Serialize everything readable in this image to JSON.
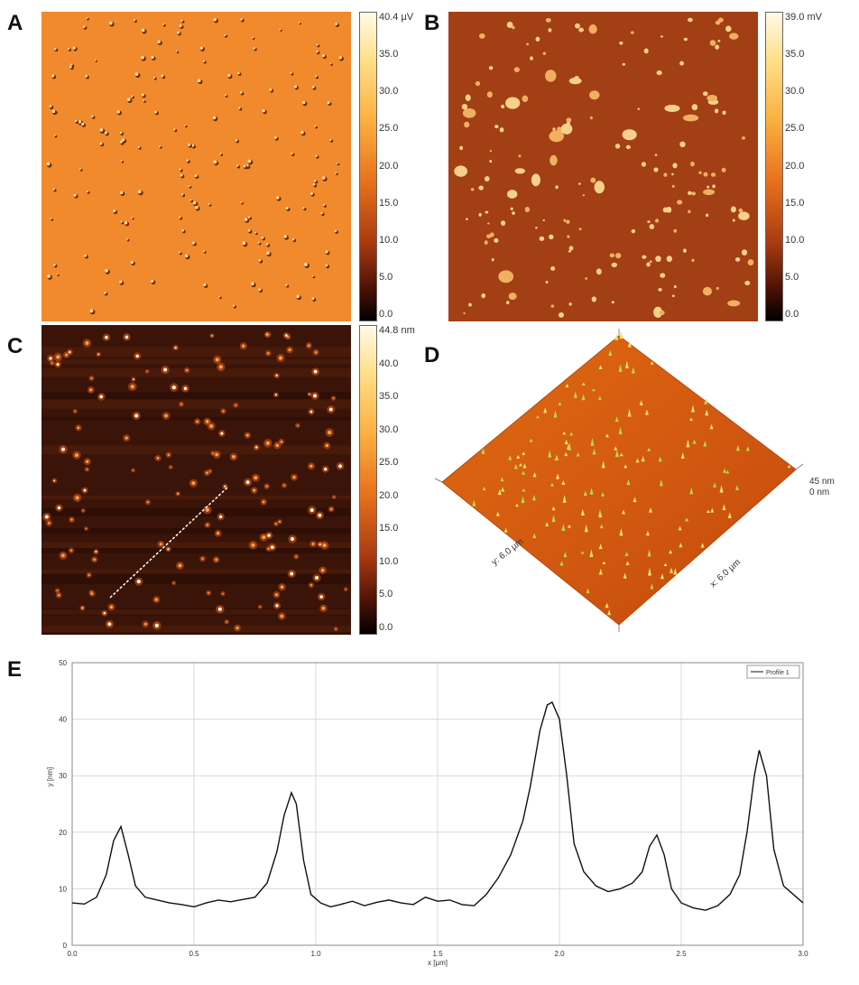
{
  "panels": {
    "A": {
      "letter": "A",
      "colorbar_ticks": [
        "40.4 µV",
        "35.0",
        "30.0",
        "25.0",
        "20.0",
        "15.0",
        "10.0",
        "5.0",
        "0.0"
      ],
      "bg_color": "#f08a2c"
    },
    "B": {
      "letter": "B",
      "colorbar_ticks": [
        "39.0 mV",
        "35.0",
        "30.0",
        "25.0",
        "20.0",
        "15.0",
        "10.0",
        "5.0",
        "0.0"
      ],
      "bg_color": "#a23f14"
    },
    "C": {
      "letter": "C",
      "colorbar_ticks": [
        "44.8 nm",
        "40.0",
        "35.0",
        "30.0",
        "25.0",
        "20.0",
        "15.0",
        "10.0",
        "5.0",
        "0.0"
      ],
      "bg_color": "#3a1408"
    },
    "D": {
      "letter": "D",
      "z_max": "45 nm",
      "z_min": "0 nm",
      "y_axis_label": "y: 6.0 µm",
      "x_axis_label": "x: 6.0 µm"
    },
    "E": {
      "letter": "E"
    }
  },
  "colors": {
    "afm_light": "#fff8e0",
    "afm_dark": "#000000",
    "profile_line": "#111111",
    "grid": "#d8d8d8"
  },
  "chart_data": {
    "type": "line",
    "title": "",
    "xlabel": "x [µm]",
    "ylabel": "y [nm]",
    "xlim": [
      0,
      3.0
    ],
    "ylim": [
      0,
      50
    ],
    "x_ticks": [
      "0.0",
      "0.5",
      "1.0",
      "1.5",
      "2.0",
      "2.5",
      "3.0"
    ],
    "y_ticks": [
      "0",
      "10",
      "20",
      "30",
      "40",
      "50"
    ],
    "legend": "top-right",
    "grid": true,
    "series": [
      {
        "name": "Profile 1",
        "x": [
          0.0,
          0.05,
          0.1,
          0.14,
          0.17,
          0.2,
          0.23,
          0.26,
          0.3,
          0.35,
          0.4,
          0.45,
          0.5,
          0.55,
          0.6,
          0.65,
          0.7,
          0.75,
          0.8,
          0.84,
          0.87,
          0.9,
          0.92,
          0.95,
          0.98,
          1.02,
          1.06,
          1.1,
          1.15,
          1.2,
          1.25,
          1.3,
          1.35,
          1.4,
          1.45,
          1.5,
          1.55,
          1.6,
          1.65,
          1.7,
          1.75,
          1.8,
          1.85,
          1.88,
          1.92,
          1.95,
          1.97,
          2.0,
          2.03,
          2.06,
          2.1,
          2.15,
          2.2,
          2.25,
          2.3,
          2.34,
          2.37,
          2.4,
          2.43,
          2.46,
          2.5,
          2.55,
          2.6,
          2.65,
          2.7,
          2.74,
          2.77,
          2.8,
          2.82,
          2.85,
          2.88,
          2.92,
          2.96,
          3.0
        ],
        "y": [
          7.5,
          7.3,
          8.5,
          12.5,
          18.5,
          21.0,
          16.0,
          10.5,
          8.5,
          8.0,
          7.5,
          7.2,
          6.8,
          7.5,
          8.0,
          7.7,
          8.1,
          8.5,
          11.0,
          16.5,
          23.0,
          27.0,
          25.0,
          15.0,
          9.0,
          7.5,
          6.8,
          7.2,
          7.8,
          7.0,
          7.6,
          8.0,
          7.5,
          7.2,
          8.5,
          7.8,
          8.0,
          7.2,
          7.0,
          9.0,
          12.0,
          16.0,
          22.0,
          28.0,
          38.0,
          42.5,
          43.0,
          40.0,
          30.0,
          18.0,
          13.0,
          10.5,
          9.5,
          10.0,
          11.0,
          13.0,
          17.5,
          19.5,
          16.0,
          10.0,
          7.5,
          6.6,
          6.2,
          7.0,
          9.0,
          12.5,
          20.0,
          30.0,
          34.5,
          30.0,
          17.0,
          10.5,
          9.0,
          7.5
        ]
      }
    ]
  }
}
